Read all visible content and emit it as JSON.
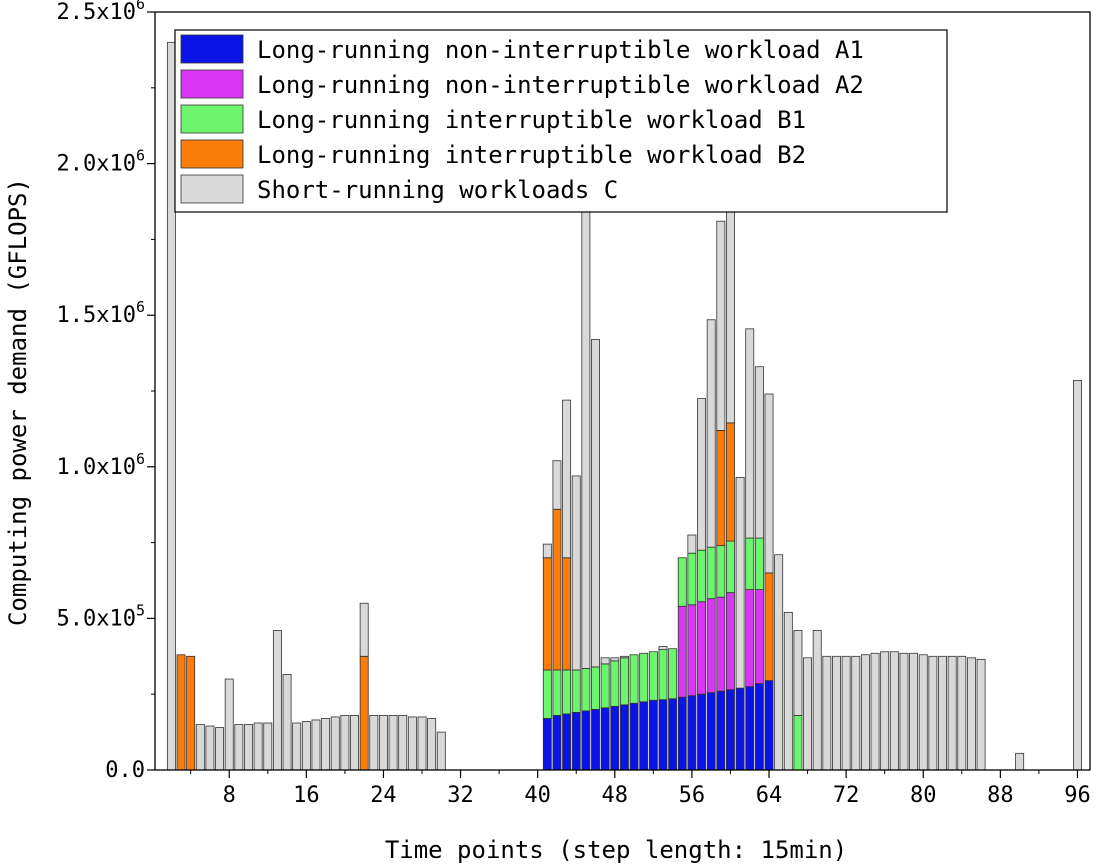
{
  "chart_data": {
    "type": "bar",
    "stacked": true,
    "xlabel": "Time points (step length: 15min)",
    "ylabel": "Computing power demand (GFLOPS)",
    "x": [
      1,
      2,
      3,
      4,
      5,
      6,
      7,
      8,
      9,
      10,
      11,
      12,
      13,
      14,
      15,
      16,
      17,
      18,
      19,
      20,
      21,
      22,
      23,
      24,
      25,
      26,
      27,
      28,
      29,
      30,
      31,
      32,
      33,
      34,
      35,
      36,
      37,
      38,
      39,
      40,
      41,
      42,
      43,
      44,
      45,
      46,
      47,
      48,
      49,
      50,
      51,
      52,
      53,
      54,
      55,
      56,
      57,
      58,
      59,
      60,
      61,
      62,
      63,
      64,
      65,
      66,
      67,
      68,
      69,
      70,
      71,
      72,
      73,
      74,
      75,
      76,
      77,
      78,
      79,
      80,
      81,
      82,
      83,
      84,
      85,
      86,
      87,
      88,
      89,
      90,
      91,
      92,
      93,
      94,
      95,
      96
    ],
    "xlim": [
      0.3,
      97.3
    ],
    "ylim": [
      0,
      2500000
    ],
    "x_ticks": [
      8,
      16,
      24,
      32,
      40,
      48,
      56,
      64,
      72,
      80,
      88,
      96
    ],
    "y_ticks": [
      {
        "value": 0,
        "mantissa": "0.0",
        "exp": ""
      },
      {
        "value": 500000,
        "mantissa": "5.0x10",
        "exp": "5"
      },
      {
        "value": 1000000,
        "mantissa": "1.0x10",
        "exp": "6"
      },
      {
        "value": 1500000,
        "mantissa": "1.5x10",
        "exp": "6"
      },
      {
        "value": 2000000,
        "mantissa": "2.0x10",
        "exp": "6"
      },
      {
        "value": 2500000,
        "mantissa": "2.5x10",
        "exp": "6"
      }
    ],
    "legend_position": "top-right",
    "series": [
      {
        "name": "Long-running non-interruptible workload A1",
        "color": "#0a14e6",
        "values": [
          0,
          0,
          0,
          0,
          0,
          0,
          0,
          0,
          0,
          0,
          0,
          0,
          0,
          0,
          0,
          0,
          0,
          0,
          0,
          0,
          0,
          0,
          0,
          0,
          0,
          0,
          0,
          0,
          0,
          0,
          0,
          0,
          0,
          0,
          0,
          0,
          0,
          0,
          0,
          0,
          170000,
          180000,
          185000,
          190000,
          195000,
          200000,
          205000,
          210000,
          215000,
          220000,
          225000,
          230000,
          232000,
          235000,
          240000,
          245000,
          250000,
          255000,
          260000,
          265000,
          270000,
          275000,
          285000,
          295000,
          0,
          0,
          0,
          0,
          0,
          0,
          0,
          0,
          0,
          0,
          0,
          0,
          0,
          0,
          0,
          0,
          0,
          0,
          0,
          0,
          0,
          0,
          0,
          0,
          0,
          0,
          0,
          0,
          0,
          0,
          0,
          0
        ]
      },
      {
        "name": "Long-running non-interruptible workload A2",
        "color": "#d838f4",
        "values": [
          0,
          0,
          0,
          0,
          0,
          0,
          0,
          0,
          0,
          0,
          0,
          0,
          0,
          0,
          0,
          0,
          0,
          0,
          0,
          0,
          0,
          0,
          0,
          0,
          0,
          0,
          0,
          0,
          0,
          0,
          0,
          0,
          0,
          0,
          0,
          0,
          0,
          0,
          0,
          0,
          0,
          0,
          0,
          0,
          0,
          0,
          0,
          0,
          0,
          0,
          0,
          0,
          0,
          0,
          300000,
          300000,
          305000,
          310000,
          310000,
          320000,
          0,
          320000,
          310000,
          0,
          0,
          0,
          0,
          0,
          0,
          0,
          0,
          0,
          0,
          0,
          0,
          0,
          0,
          0,
          0,
          0,
          0,
          0,
          0,
          0,
          0,
          0,
          0,
          0,
          0,
          0,
          0,
          0,
          0,
          0,
          0,
          0
        ]
      },
      {
        "name": "Long-running interruptible workload B1",
        "color": "#6ef56e",
        "values": [
          0,
          0,
          0,
          0,
          0,
          0,
          0,
          0,
          0,
          0,
          0,
          0,
          0,
          0,
          0,
          0,
          0,
          0,
          0,
          0,
          0,
          0,
          0,
          0,
          0,
          0,
          0,
          0,
          0,
          0,
          0,
          0,
          0,
          0,
          0,
          0,
          0,
          0,
          0,
          0,
          160000,
          150000,
          145000,
          140000,
          140000,
          140000,
          145000,
          150000,
          155000,
          160000,
          160000,
          160000,
          165000,
          165000,
          160000,
          170000,
          170000,
          170000,
          170000,
          170000,
          0,
          170000,
          170000,
          0,
          0,
          0,
          180000,
          0,
          0,
          0,
          0,
          0,
          0,
          0,
          0,
          0,
          0,
          0,
          0,
          0,
          0,
          0,
          0,
          0,
          0,
          0,
          0,
          0,
          0,
          0,
          0,
          0,
          0,
          0,
          0,
          0
        ]
      },
      {
        "name": "Long-running interruptible workload B2",
        "color": "#fa7c0a",
        "values": [
          0,
          0,
          380000,
          375000,
          0,
          0,
          0,
          0,
          0,
          0,
          0,
          0,
          0,
          0,
          0,
          0,
          0,
          0,
          0,
          0,
          0,
          375000,
          0,
          0,
          0,
          0,
          0,
          0,
          0,
          0,
          0,
          0,
          0,
          0,
          0,
          0,
          0,
          0,
          0,
          0,
          370000,
          530000,
          370000,
          0,
          0,
          0,
          0,
          0,
          0,
          0,
          0,
          0,
          0,
          0,
          0,
          0,
          0,
          0,
          380000,
          390000,
          0,
          0,
          0,
          355000,
          0,
          0,
          0,
          0,
          0,
          0,
          0,
          0,
          0,
          0,
          0,
          0,
          0,
          0,
          0,
          0,
          0,
          0,
          0,
          0,
          0,
          0,
          0,
          0,
          0,
          0,
          0,
          0,
          0,
          0,
          0,
          0
        ]
      },
      {
        "name": "Short-running workloads C",
        "color": "#d9d9d9",
        "values": [
          0,
          2400000,
          0,
          0,
          150000,
          145000,
          140000,
          300000,
          150000,
          150000,
          155000,
          155000,
          460000,
          315000,
          155000,
          160000,
          165000,
          170000,
          175000,
          180000,
          180000,
          175000,
          180000,
          180000,
          180000,
          180000,
          175000,
          175000,
          170000,
          125000,
          0,
          0,
          0,
          0,
          0,
          0,
          0,
          0,
          0,
          0,
          45000,
          160000,
          520000,
          640000,
          1700000,
          1080000,
          20000,
          10000,
          5000,
          0,
          0,
          0,
          10000,
          0,
          0,
          60000,
          500000,
          750000,
          690000,
          700000,
          695000,
          690000,
          565000,
          590000,
          710000,
          520000,
          540000,
          355000,
          0,
          0,
          0,
          0,
          0,
          0,
          0,
          0,
          0,
          0,
          0,
          0,
          0,
          0,
          0,
          0,
          0,
          0,
          0,
          0,
          0,
          0,
          0,
          0,
          0,
          0,
          0,
          0
        ]
      }
    ],
    "short_running_continued": {
      "x": [
        67,
        68,
        69,
        70,
        71,
        72,
        73,
        74,
        75,
        76,
        77,
        78,
        79,
        80,
        81,
        82,
        83,
        84,
        85,
        86,
        90,
        96
      ],
      "values": [
        280000,
        370000,
        460000,
        375000,
        375000,
        375000,
        375000,
        380000,
        385000,
        390000,
        390000,
        385000,
        385000,
        380000,
        375000,
        375000,
        375000,
        375000,
        370000,
        365000,
        55000,
        1285000
      ]
    }
  }
}
